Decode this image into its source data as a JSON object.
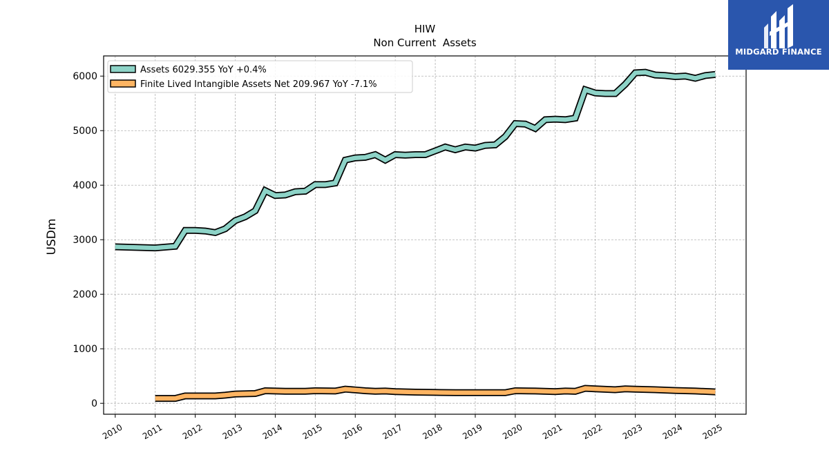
{
  "logo": {
    "text": "MIDGARD FINANCE",
    "background": "#2a56ad"
  },
  "chart_data": {
    "type": "line",
    "title": "HIW",
    "subtitle": "Non Current  Assets",
    "xlabel": "",
    "ylabel": "USDm",
    "xlim": [
      2009.71,
      2025.77
    ],
    "ylim": [
      -200,
      6370
    ],
    "yticks": [
      0,
      1000,
      2000,
      3000,
      4000,
      5000,
      6000
    ],
    "xticks": [
      "2010",
      "2011",
      "2012",
      "2013",
      "2014",
      "2015",
      "2016",
      "2017",
      "2018",
      "2019",
      "2020",
      "2021",
      "2022",
      "2023",
      "2024",
      "2025"
    ],
    "grid": true,
    "legend_position": "top-left",
    "series": [
      {
        "name": "Assets  6029.355 YoY +0.4%",
        "color": "#8dd3c7",
        "points": [
          [
            2010.0,
            2870
          ],
          [
            2011.0,
            2850
          ],
          [
            2011.5,
            2880
          ],
          [
            2011.75,
            3170
          ],
          [
            2012.0,
            3170
          ],
          [
            2012.25,
            3160
          ],
          [
            2012.5,
            3130
          ],
          [
            2012.75,
            3200
          ],
          [
            2013.0,
            3350
          ],
          [
            2013.25,
            3420
          ],
          [
            2013.5,
            3530
          ],
          [
            2013.75,
            3900
          ],
          [
            2014.0,
            3810
          ],
          [
            2014.25,
            3820
          ],
          [
            2014.5,
            3880
          ],
          [
            2014.75,
            3890
          ],
          [
            2015.0,
            4010
          ],
          [
            2015.25,
            4010
          ],
          [
            2015.5,
            4040
          ],
          [
            2015.75,
            4460
          ],
          [
            2016.0,
            4500
          ],
          [
            2016.25,
            4510
          ],
          [
            2016.5,
            4560
          ],
          [
            2016.75,
            4460
          ],
          [
            2017.0,
            4560
          ],
          [
            2017.25,
            4550
          ],
          [
            2017.5,
            4560
          ],
          [
            2017.75,
            4560
          ],
          [
            2018.0,
            4630
          ],
          [
            2018.25,
            4700
          ],
          [
            2018.5,
            4650
          ],
          [
            2018.75,
            4700
          ],
          [
            2019.0,
            4680
          ],
          [
            2019.25,
            4730
          ],
          [
            2019.5,
            4740
          ],
          [
            2019.75,
            4890
          ],
          [
            2020.0,
            5130
          ],
          [
            2020.25,
            5120
          ],
          [
            2020.5,
            5040
          ],
          [
            2020.75,
            5200
          ],
          [
            2021.0,
            5210
          ],
          [
            2021.25,
            5200
          ],
          [
            2021.5,
            5230
          ],
          [
            2021.75,
            5750
          ],
          [
            2022.0,
            5690
          ],
          [
            2022.25,
            5680
          ],
          [
            2022.5,
            5680
          ],
          [
            2022.75,
            5850
          ],
          [
            2023.0,
            6060
          ],
          [
            2023.25,
            6070
          ],
          [
            2023.5,
            6020
          ],
          [
            2023.75,
            6010
          ],
          [
            2024.0,
            5990
          ],
          [
            2024.25,
            6000
          ],
          [
            2024.5,
            5960
          ],
          [
            2024.75,
            6010
          ],
          [
            2025.0,
            6030
          ]
        ]
      },
      {
        "name": "Finite Lived Intangible Assets Net  209.967 YoY -7.1%",
        "color": "#fdb462",
        "points": [
          [
            2011.0,
            90
          ],
          [
            2011.5,
            90
          ],
          [
            2011.75,
            135
          ],
          [
            2012.0,
            135
          ],
          [
            2012.5,
            135
          ],
          [
            2012.75,
            150
          ],
          [
            2013.0,
            170
          ],
          [
            2013.5,
            180
          ],
          [
            2013.75,
            230
          ],
          [
            2014.0,
            225
          ],
          [
            2014.25,
            220
          ],
          [
            2014.75,
            220
          ],
          [
            2015.0,
            230
          ],
          [
            2015.5,
            225
          ],
          [
            2015.75,
            260
          ],
          [
            2016.0,
            245
          ],
          [
            2016.25,
            230
          ],
          [
            2016.5,
            220
          ],
          [
            2016.75,
            225
          ],
          [
            2017.0,
            215
          ],
          [
            2017.5,
            205
          ],
          [
            2018.0,
            200
          ],
          [
            2018.5,
            195
          ],
          [
            2019.0,
            195
          ],
          [
            2019.5,
            195
          ],
          [
            2019.75,
            195
          ],
          [
            2020.0,
            230
          ],
          [
            2020.5,
            225
          ],
          [
            2021.0,
            215
          ],
          [
            2021.25,
            225
          ],
          [
            2021.5,
            220
          ],
          [
            2021.75,
            275
          ],
          [
            2022.0,
            265
          ],
          [
            2022.5,
            250
          ],
          [
            2022.75,
            265
          ],
          [
            2023.0,
            260
          ],
          [
            2023.5,
            250
          ],
          [
            2024.0,
            235
          ],
          [
            2024.5,
            225
          ],
          [
            2025.0,
            210
          ]
        ]
      }
    ]
  }
}
